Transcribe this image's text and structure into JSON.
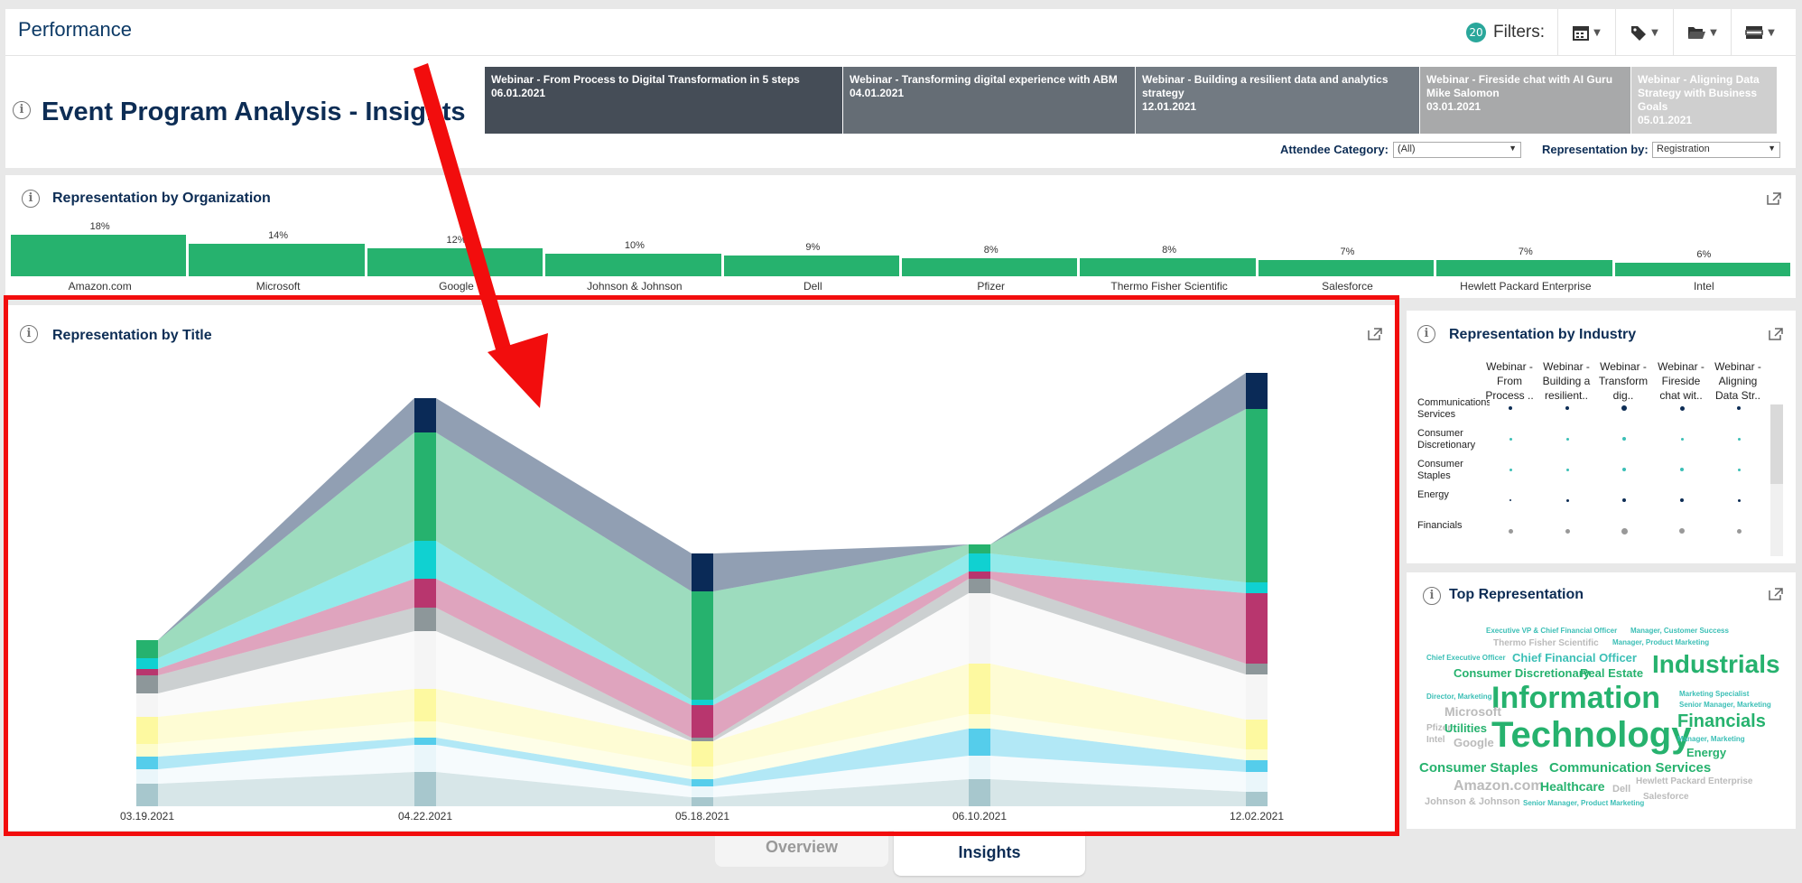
{
  "app": {
    "title": "Performance"
  },
  "filters": {
    "count": "20",
    "label": "Filters:",
    "buttons": [
      "calendar-icon",
      "tag-icon",
      "folder-icon",
      "list-icon"
    ]
  },
  "header": {
    "title": "Event Program Analysis - Insights",
    "webinars": [
      {
        "title": "Webinar - From Process to Digital Transformation in 5 steps",
        "date": "06.01.2021",
        "color": "#454d57"
      },
      {
        "title": "Webinar - Transforming digital experience with ABM",
        "date": "04.01.2021",
        "color": "#656d75"
      },
      {
        "title": "Webinar - Building a resilient data and analytics strategy",
        "date": "12.01.2021",
        "color": "#727a82"
      },
      {
        "title": "Webinar - Fireside chat with AI Guru Mike Salomon",
        "date": "03.01.2021",
        "color": "#a8a9aa"
      },
      {
        "title": "Webinar - Aligning Data Strategy with Business Goals",
        "date": "05.01.2021",
        "color": "#cfcfcf"
      }
    ],
    "attendee_label": "Attendee Category:",
    "attendee_value": "(All)",
    "representation_label": "Representation by:",
    "representation_value": "Registration"
  },
  "org_panel": {
    "title": "Representation by Organization",
    "items": [
      {
        "name": "Amazon.com",
        "pct": "18%",
        "value": 18
      },
      {
        "name": "Microsoft",
        "pct": "14%",
        "value": 14
      },
      {
        "name": "Google",
        "pct": "12%",
        "value": 12
      },
      {
        "name": "Johnson & Johnson",
        "pct": "10%",
        "value": 10
      },
      {
        "name": "Dell",
        "pct": "9%",
        "value": 9
      },
      {
        "name": "Pfizer",
        "pct": "8%",
        "value": 8
      },
      {
        "name": "Thermo Fisher Scientific",
        "pct": "8%",
        "value": 8
      },
      {
        "name": "Salesforce",
        "pct": "7%",
        "value": 7
      },
      {
        "name": "Hewlett Packard Enterprise",
        "pct": "7%",
        "value": 7
      },
      {
        "name": "Intel",
        "pct": "6%",
        "value": 6
      }
    ]
  },
  "title_panel": {
    "title": "Representation by Title"
  },
  "chart_data": {
    "type": "area",
    "title": "Representation by Title",
    "x": [
      "03.19.2021",
      "04.22.2021",
      "05.18.2021",
      "06.10.2021",
      "12.02.2021"
    ],
    "series_colors": [
      "#a7c7cd",
      "#eaf6fa",
      "#55cdeb",
      "#fdfccd",
      "#fdf9a0",
      "#f5f5f5",
      "#8d979a",
      "#b8366e",
      "#10d1d1",
      "#26b26e",
      "#0a2a57"
    ],
    "stacks": [
      [
        25,
        16,
        14,
        14,
        30,
        26,
        20,
        7,
        12,
        20,
        0
      ],
      [
        38,
        30,
        8,
        18,
        36,
        64,
        26,
        32,
        42,
        120,
        38
      ],
      [
        10,
        12,
        8,
        14,
        28,
        0,
        4,
        36,
        6,
        120,
        42
      ],
      [
        30,
        26,
        30,
        16,
        56,
        78,
        16,
        8,
        20,
        10,
        0
      ],
      [
        16,
        22,
        13,
        12,
        33,
        50,
        12,
        78,
        12,
        192,
        40
      ]
    ],
    "ylim": [
      0,
      470
    ]
  },
  "industry_panel": {
    "title": "Representation by Industry",
    "columns": [
      "Webinar - From Process ..",
      "Webinar - Building a resilient..",
      "Webinar - Transform dig..",
      "Webinar - Fireside chat wit..",
      "Webinar - Aligning Data Str.."
    ],
    "rows": [
      {
        "name": "Communications Services",
        "color": "#0d2d55",
        "sizes": [
          2,
          2,
          3,
          2.5,
          2
        ]
      },
      {
        "name": "Consumer Discretionary",
        "color": "#3bbfb6",
        "sizes": [
          1.5,
          1.5,
          2,
          1.5,
          1.5
        ]
      },
      {
        "name": "Consumer Staples",
        "color": "#3bbfb6",
        "sizes": [
          1.5,
          1.5,
          2,
          2,
          1.5
        ]
      },
      {
        "name": "Energy",
        "color": "#0d2d55",
        "sizes": [
          1.2,
          1.5,
          2,
          2,
          1.5
        ]
      },
      {
        "name": "Financials",
        "color": "#999999",
        "sizes": [
          2.5,
          2.5,
          3.5,
          3,
          2.5
        ]
      }
    ]
  },
  "top_panel": {
    "title": "Top Representation",
    "words": [
      {
        "text": "Executive VP & Chief Financial Officer",
        "color": "#3bbfb6"
      },
      {
        "text": "Manager, Customer Success",
        "color": "#3bbfb6"
      },
      {
        "text": "Thermo Fisher Scientific",
        "color": "#bbbbbb"
      },
      {
        "text": "Manager, Product Marketing",
        "color": "#3bbfb6"
      },
      {
        "text": "Chief Executive Officer",
        "color": "#3bbfb6"
      },
      {
        "text": "Chief Financial Officer",
        "color": "#3bbfb6"
      },
      {
        "text": "Consumer Discretionary",
        "color": "#26b26e"
      },
      {
        "text": "Real Estate",
        "color": "#26b26e"
      },
      {
        "text": "Industrials",
        "color": "#26b26e"
      },
      {
        "text": "Director, Marketing",
        "color": "#3bbfb6"
      },
      {
        "text": "Information",
        "color": "#26b26e"
      },
      {
        "text": "Marketing Specialist",
        "color": "#3bbfb6"
      },
      {
        "text": "Microsoft",
        "color": "#bbbbbb"
      },
      {
        "text": "Senior Manager, Marketing",
        "color": "#3bbfb6"
      },
      {
        "text": "Financials",
        "color": "#26b26e"
      },
      {
        "text": "Pfizer",
        "color": "#bbbbbb"
      },
      {
        "text": "Utilities",
        "color": "#26b26e"
      },
      {
        "text": "Technology",
        "color": "#26b26e"
      },
      {
        "text": "Intel",
        "color": "#bbbbbb"
      },
      {
        "text": "Google",
        "color": "#bbbbbb"
      },
      {
        "text": "Manager, Marketing",
        "color": "#3bbfb6"
      },
      {
        "text": "Energy",
        "color": "#26b26e"
      },
      {
        "text": "Consumer Staples",
        "color": "#26b26e"
      },
      {
        "text": "Communication Services",
        "color": "#26b26e"
      },
      {
        "text": "Amazon.com",
        "color": "#bbbbbb"
      },
      {
        "text": "Healthcare",
        "color": "#26b26e"
      },
      {
        "text": "Dell",
        "color": "#bbbbbb"
      },
      {
        "text": "Hewlett Packard Enterprise",
        "color": "#bbbbbb"
      },
      {
        "text": "Johnson & Johnson",
        "color": "#bbbbbb"
      },
      {
        "text": "Senior Manager, Product Marketing",
        "color": "#3bbfb6"
      },
      {
        "text": "Salesforce",
        "color": "#bbbbbb"
      }
    ]
  },
  "tabs": {
    "overview": "Overview",
    "insights": "Insights"
  },
  "annotation": {
    "arrow_color": "#f20d0d",
    "box_color": "#f20d0d"
  }
}
